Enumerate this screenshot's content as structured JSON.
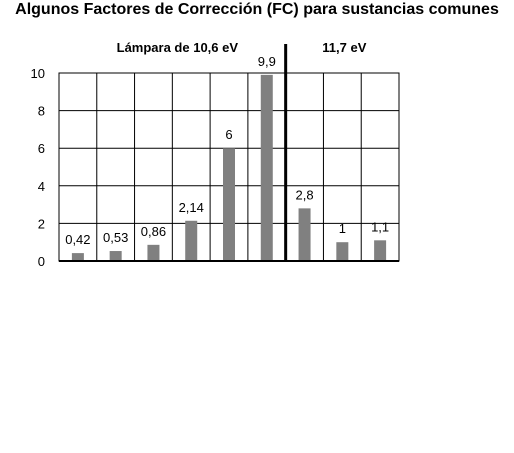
{
  "chart_data": {
    "type": "bar",
    "title": "Algunos Factores de Corrección (FC) para sustancias comunes",
    "groups": [
      {
        "label": "Lámpara de 10,6 eV",
        "count": 6
      },
      {
        "label": "11,7 eV",
        "count": 3
      }
    ],
    "values": [
      0.42,
      0.53,
      0.86,
      2.14,
      6,
      9.9,
      2.8,
      1,
      1.1
    ],
    "data_labels": [
      "0,42",
      "0,53",
      "0,86",
      "2,14",
      "6",
      "9,9",
      "2,8",
      "1",
      "1,1"
    ],
    "ylim": [
      0,
      10
    ],
    "yticks": [
      0,
      2,
      4,
      6,
      8,
      10
    ],
    "ytick_labels": [
      "0",
      "2",
      "4",
      "6",
      "8",
      "10"
    ],
    "grid": true,
    "bar_color": "#808080"
  }
}
